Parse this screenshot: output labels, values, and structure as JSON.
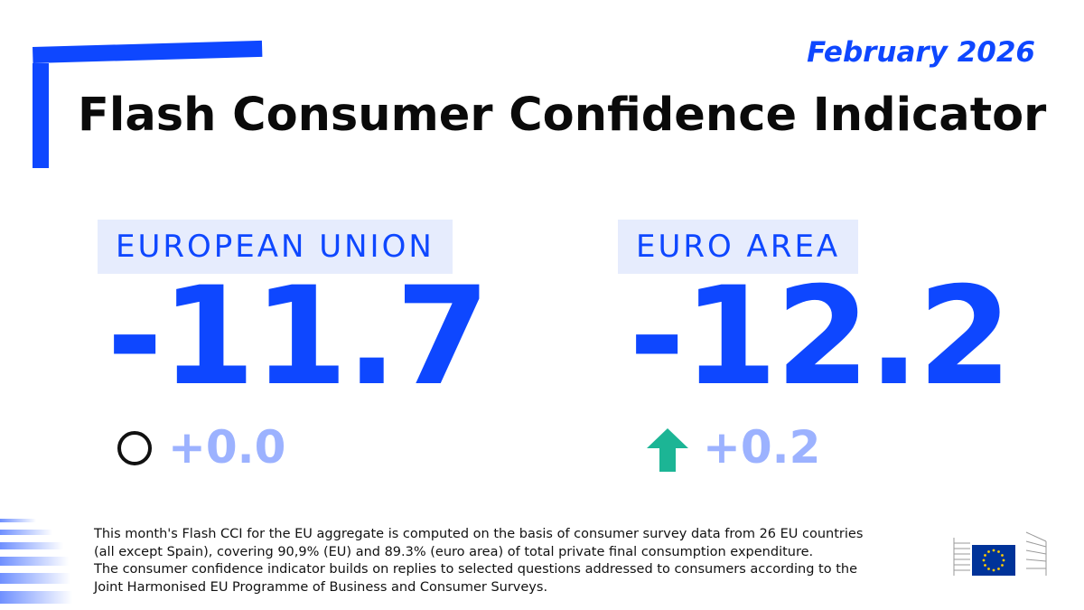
{
  "header": {
    "date": "February 2026",
    "title": "Flash Consumer Confidence Indicator"
  },
  "eu": {
    "label": "EUROPEAN UNION",
    "value": "-11.7",
    "change": "+0.0",
    "trend_icon": "no-change-circle-icon"
  },
  "euro_area": {
    "label": "EURO AREA",
    "value": "-12.2",
    "change": "+0.2",
    "trend_icon": "arrow-up-icon"
  },
  "footnote": {
    "line1": "This month's Flash CCI for the EU aggregate is computed on the basis of consumer survey data from 26 EU countries",
    "line2": "(all except Spain), covering 90,9% (EU) and 89.3% (euro area) of total private final consumption expenditure.",
    "line3": "The consumer confidence indicator builds on replies to selected questions addressed to consumers according to the",
    "line4": "Joint Harmonised EU Programme of Business and Consumer Surveys."
  },
  "colors": {
    "brand_blue": "#0e47ff",
    "change_light_blue": "#9cb2ff",
    "region_background": "#e6ecfd",
    "arrow_teal": "#1cb595",
    "eu_flag_blue": "#003399",
    "eu_flag_star": "#ffcc00"
  },
  "icons": {
    "logo": "european-commission-logo"
  }
}
